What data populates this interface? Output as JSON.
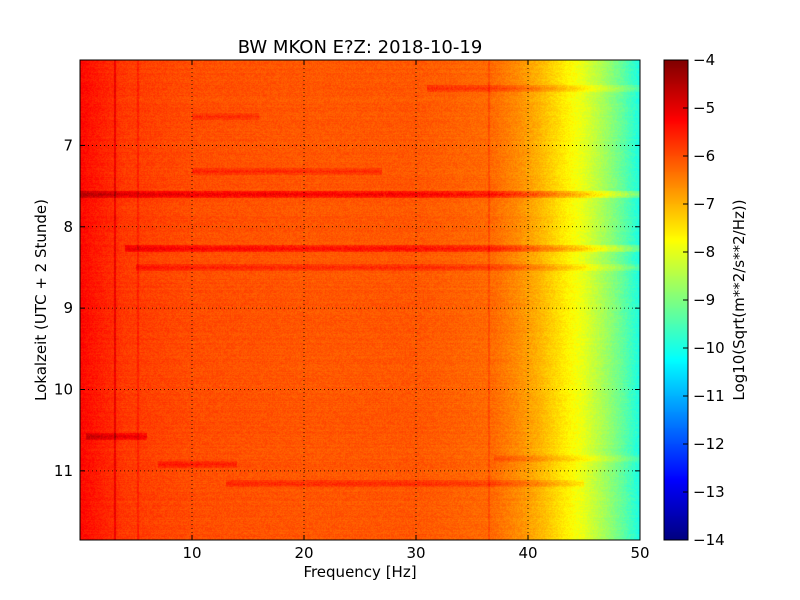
{
  "chart_data": {
    "type": "heatmap",
    "title": "BW MKON E?Z: 2018-10-19",
    "xlabel": "Frequency [Hz]",
    "ylabel": "Lokalzeit (UTC + 2 Stunde)",
    "xlim": [
      0.0,
      50.0
    ],
    "ylim": [
      5.95,
      11.85
    ],
    "y_inverted": true,
    "x_ticks": [
      10,
      20,
      30,
      40,
      50
    ],
    "y_ticks": [
      7,
      8,
      9,
      10,
      11
    ],
    "grid": true,
    "colormap": "jet",
    "colorbar": {
      "label": "Log10(Sqrt(m**2/s**2/Hz))",
      "range": [
        -14,
        -4
      ],
      "ticks": [
        -4,
        -5,
        -6,
        -7,
        -8,
        -9,
        -10,
        -11,
        -12,
        -13,
        -14
      ]
    },
    "frequency_profile": [
      {
        "f": 0.0,
        "v": -5.3
      },
      {
        "f": 1.5,
        "v": -5.5
      },
      {
        "f": 4.0,
        "v": -5.8
      },
      {
        "f": 10.0,
        "v": -6.0
      },
      {
        "f": 20.0,
        "v": -6.1
      },
      {
        "f": 30.0,
        "v": -6.1
      },
      {
        "f": 37.0,
        "v": -6.3
      },
      {
        "f": 39.0,
        "v": -6.6
      },
      {
        "f": 41.0,
        "v": -7.0
      },
      {
        "f": 43.0,
        "v": -7.5
      },
      {
        "f": 45.0,
        "v": -8.0
      },
      {
        "f": 47.0,
        "v": -8.7
      },
      {
        "f": 48.5,
        "v": -9.3
      },
      {
        "f": 50.0,
        "v": -10.0
      }
    ],
    "horizontal_bands": [
      {
        "t": 6.3,
        "f_from": 31.0,
        "f_to": 50.0,
        "delta": 0.5
      },
      {
        "t": 6.65,
        "f_from": 10.0,
        "f_to": 16.0,
        "delta": 0.4
      },
      {
        "t": 7.32,
        "f_from": 10.0,
        "f_to": 27.0,
        "delta": 0.5
      },
      {
        "t": 7.6,
        "f_from": 0.0,
        "f_to": 50.0,
        "delta": 1.0
      },
      {
        "t": 8.27,
        "f_from": 4.0,
        "f_to": 50.0,
        "delta": 0.8
      },
      {
        "t": 8.5,
        "f_from": 5.0,
        "f_to": 50.0,
        "delta": 0.5
      },
      {
        "t": 10.58,
        "f_from": 0.5,
        "f_to": 6.0,
        "delta": 0.8
      },
      {
        "t": 10.85,
        "f_from": 37.0,
        "f_to": 50.0,
        "delta": 0.4
      },
      {
        "t": 10.92,
        "f_from": 7.0,
        "f_to": 14.0,
        "delta": 0.5
      },
      {
        "t": 11.16,
        "f_from": 13.0,
        "f_to": 45.0,
        "delta": 0.5
      }
    ],
    "vertical_lines": [
      {
        "f": 3.1,
        "delta": 0.6
      },
      {
        "f": 5.2,
        "delta": 0.3
      },
      {
        "f": 36.5,
        "delta": 0.3
      }
    ]
  }
}
